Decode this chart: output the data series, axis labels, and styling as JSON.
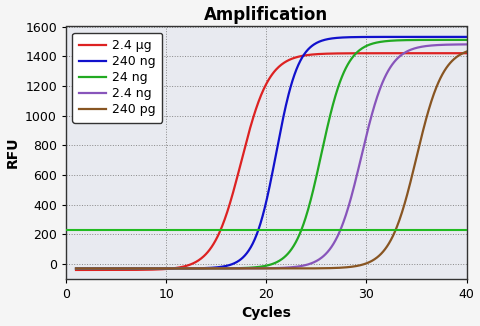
{
  "title": "Amplification",
  "xlabel": "Cycles",
  "ylabel": "RFU",
  "xlim": [
    1,
    40
  ],
  "ylim": [
    -100,
    1600
  ],
  "yticks": [
    0,
    200,
    400,
    600,
    800,
    1000,
    1200,
    1400,
    1600
  ],
  "xticks": [
    0,
    10,
    20,
    30,
    40
  ],
  "threshold_y": 230,
  "threshold_color": "#22bb22",
  "series": [
    {
      "label": "2.4 μg",
      "color": "#dd2222",
      "midpoint": 17.5,
      "steepness": 0.72,
      "plateau": 1420,
      "baseline": -40
    },
    {
      "label": "240 ng",
      "color": "#1111cc",
      "midpoint": 21.0,
      "steepness": 0.9,
      "plateau": 1530,
      "baseline": -30
    },
    {
      "label": "24 ng",
      "color": "#22aa22",
      "midpoint": 25.5,
      "steepness": 0.8,
      "plateau": 1510,
      "baseline": -30
    },
    {
      "label": "2.4 ng",
      "color": "#8855bb",
      "midpoint": 29.5,
      "steepness": 0.75,
      "plateau": 1480,
      "baseline": -30
    },
    {
      "label": "240 pg",
      "color": "#885522",
      "midpoint": 35.0,
      "steepness": 0.75,
      "plateau": 1465,
      "baseline": -30
    }
  ],
  "plot_bg_color": "#e8eaf0",
  "fig_bg_color": "#f5f5f5",
  "grid_color": "#888888",
  "title_fontsize": 12,
  "axis_label_fontsize": 10,
  "tick_fontsize": 9,
  "legend_fontsize": 9
}
